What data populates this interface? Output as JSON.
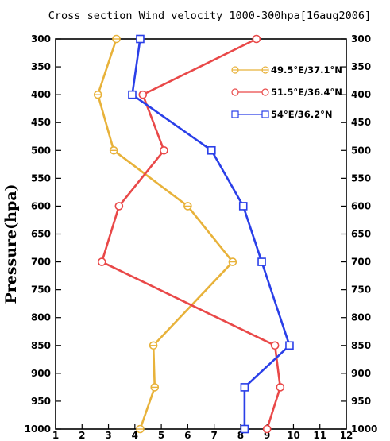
{
  "chart_data": {
    "type": "line",
    "title": "Cross section Wind velocity 1000-300hpa[16aug2006]",
    "ylabel": "Pressure(hpa)",
    "xlabel": "",
    "xlim": [
      1,
      12
    ],
    "ylim": [
      1000,
      300
    ],
    "x_ticks": [
      1,
      2,
      3,
      4,
      5,
      6,
      7,
      8,
      9,
      10,
      11,
      12
    ],
    "y_ticks": [
      300,
      350,
      400,
      450,
      500,
      550,
      600,
      650,
      700,
      750,
      800,
      850,
      900,
      950,
      1000
    ],
    "grid": false,
    "legend_position": "top-right",
    "series": [
      {
        "name": "49.5°E/37.1°N",
        "color": "#e8b23a",
        "marker": "hbar-circle",
        "points": [
          {
            "p": 300,
            "v": 3.3
          },
          {
            "p": 400,
            "v": 2.6
          },
          {
            "p": 500,
            "v": 3.2
          },
          {
            "p": 600,
            "v": 6.0
          },
          {
            "p": 700,
            "v": 7.7
          },
          {
            "p": 850,
            "v": 4.7
          },
          {
            "p": 925,
            "v": 4.75
          },
          {
            "p": 1000,
            "v": 4.2
          }
        ]
      },
      {
        "name": "51.5°E/36.4°N",
        "color": "#e94848",
        "marker": "circle",
        "points": [
          {
            "p": 300,
            "v": 8.6
          },
          {
            "p": 400,
            "v": 4.3
          },
          {
            "p": 500,
            "v": 5.1
          },
          {
            "p": 600,
            "v": 3.4
          },
          {
            "p": 700,
            "v": 2.75
          },
          {
            "p": 850,
            "v": 9.3
          },
          {
            "p": 925,
            "v": 9.5
          },
          {
            "p": 1000,
            "v": 9.0
          }
        ]
      },
      {
        "name": "54°E/36.2°N",
        "color": "#2a3fe8",
        "marker": "square",
        "points": [
          {
            "p": 300,
            "v": 4.2
          },
          {
            "p": 400,
            "v": 3.9
          },
          {
            "p": 500,
            "v": 6.9
          },
          {
            "p": 600,
            "v": 8.1
          },
          {
            "p": 700,
            "v": 8.8
          },
          {
            "p": 850,
            "v": 9.85
          },
          {
            "p": 925,
            "v": 8.15
          },
          {
            "p": 1000,
            "v": 8.15
          }
        ]
      }
    ]
  }
}
